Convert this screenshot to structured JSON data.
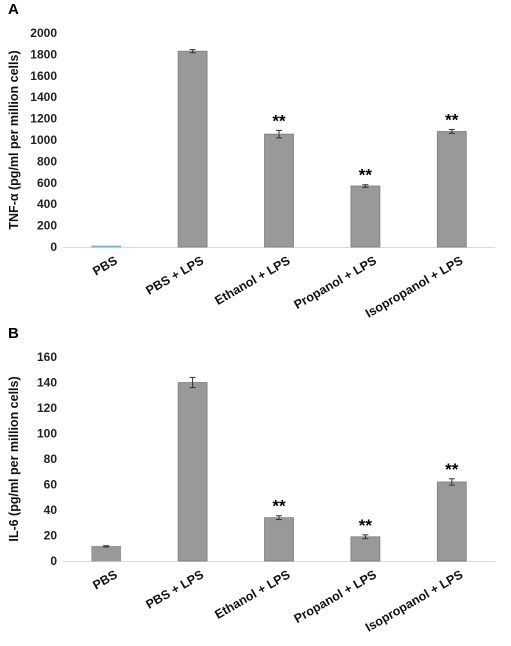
{
  "chart_data": [
    {
      "panel": "A",
      "type": "bar",
      "categories": [
        "PBS",
        "PBS + LPS",
        "Ethanol + LPS",
        "Propanol + LPS",
        "Isopropanol + LPS"
      ],
      "values": [
        5,
        1830,
        1055,
        570,
        1080
      ],
      "errors": [
        0,
        15,
        35,
        12,
        18
      ],
      "annotations": [
        "",
        "",
        "**",
        "**",
        "**"
      ],
      "ylabel": "TNF-α (pg/ml per million cells)",
      "ylim": [
        0,
        2000
      ],
      "yticks": [
        0,
        200,
        400,
        600,
        800,
        1000,
        1200,
        1400,
        1600,
        1800,
        2000
      ],
      "bar_color": "#999999",
      "first_bar_color": "#7ab8d8"
    },
    {
      "panel": "B",
      "type": "bar",
      "categories": [
        "PBS",
        "PBS + LPS",
        "Ethanol + LPS",
        "Propanol + LPS",
        "Isopropanol + LPS"
      ],
      "values": [
        11.5,
        140,
        34,
        19,
        62
      ],
      "errors": [
        0.5,
        4,
        1.5,
        1.5,
        2.5
      ],
      "annotations": [
        "",
        "",
        "**",
        "**",
        "**"
      ],
      "ylabel": "IL-6 (pg/ml per million cells)",
      "ylim": [
        0,
        160
      ],
      "yticks": [
        0,
        20,
        40,
        60,
        80,
        100,
        120,
        140,
        160
      ],
      "bar_color": "#999999",
      "first_bar_color": "#999999"
    }
  ]
}
